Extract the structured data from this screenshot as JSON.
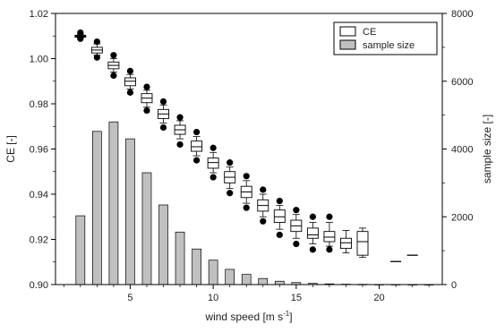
{
  "chart_data": {
    "type": "bar",
    "subtype": "boxplot-with-bars",
    "x_axis": {
      "label": "wind speed [m s",
      "label_sup": "-1",
      "label_end": "]",
      "ticks": [
        5,
        10,
        15,
        20
      ],
      "range": [
        0.5,
        23.8
      ]
    },
    "y_left": {
      "label": "CE [-]",
      "ticks": [
        "0.90",
        "0.92",
        "0.94",
        "0.96",
        "0.98",
        "1.00",
        "1.02"
      ],
      "range": [
        0.9,
        1.02
      ]
    },
    "y_right": {
      "label": "sample size [-]",
      "ticks": [
        "0",
        "2000",
        "4000",
        "6000",
        "8000"
      ],
      "range": [
        0,
        8000
      ]
    },
    "legend": {
      "position": "top-right",
      "items": [
        {
          "label": "CE",
          "swatch": "#ffffff"
        },
        {
          "label": "sample size",
          "swatch": "#c0c0c0"
        }
      ]
    },
    "sample_size": {
      "name": "sample size",
      "color": "#c0c0c0",
      "x": [
        2,
        3,
        4,
        5,
        6,
        7,
        8,
        9,
        10,
        11,
        12,
        13,
        14,
        15,
        16,
        17,
        18,
        19,
        20,
        21,
        22,
        23
      ],
      "values": [
        2030,
        4520,
        4800,
        4300,
        3300,
        2350,
        1550,
        1050,
        720,
        450,
        300,
        180,
        100,
        60,
        35,
        20,
        12,
        8,
        4,
        3,
        2,
        2
      ]
    },
    "ce_boxes": {
      "name": "CE",
      "color": "#ffffff",
      "boxes": [
        {
          "x": 2,
          "p5": 1.0088,
          "p10": 1.0092,
          "q1": 1.0095,
          "median": 1.0099,
          "q3": 1.0103,
          "p90": 1.0107,
          "p95": 1.0115
        },
        {
          "x": 3,
          "p5": 1.0005,
          "p10": 1.0015,
          "q1": 1.0025,
          "median": 1.0038,
          "q3": 1.005,
          "p90": 1.0065,
          "p95": 1.0075
        },
        {
          "x": 4,
          "p5": 0.9925,
          "p10": 0.994,
          "q1": 0.9955,
          "median": 0.997,
          "q3": 0.9985,
          "p90": 1.0,
          "p95": 1.0015
        },
        {
          "x": 5,
          "p5": 0.985,
          "p10": 0.9865,
          "q1": 0.988,
          "median": 0.99,
          "q3": 0.9915,
          "p90": 0.993,
          "p95": 0.9945
        },
        {
          "x": 6,
          "p5": 0.977,
          "p10": 0.9785,
          "q1": 0.9805,
          "median": 0.9825,
          "q3": 0.9845,
          "p90": 0.986,
          "p95": 0.9875
        },
        {
          "x": 7,
          "p5": 0.9695,
          "p10": 0.9715,
          "q1": 0.9735,
          "median": 0.9755,
          "q3": 0.9775,
          "p90": 0.9795,
          "p95": 0.981
        },
        {
          "x": 8,
          "p5": 0.962,
          "p10": 0.9645,
          "q1": 0.9665,
          "median": 0.9685,
          "q3": 0.9705,
          "p90": 0.9725,
          "p95": 0.974
        },
        {
          "x": 9,
          "p5": 0.955,
          "p10": 0.957,
          "q1": 0.959,
          "median": 0.961,
          "q3": 0.9635,
          "p90": 0.9655,
          "p95": 0.9675
        },
        {
          "x": 10,
          "p5": 0.9475,
          "p10": 0.9495,
          "q1": 0.9515,
          "median": 0.954,
          "q3": 0.956,
          "p90": 0.9585,
          "p95": 0.9605
        },
        {
          "x": 11,
          "p5": 0.9405,
          "p10": 0.9425,
          "q1": 0.945,
          "median": 0.9475,
          "q3": 0.95,
          "p90": 0.952,
          "p95": 0.954
        },
        {
          "x": 12,
          "p5": 0.934,
          "p10": 0.936,
          "q1": 0.9385,
          "median": 0.941,
          "q3": 0.9435,
          "p90": 0.946,
          "p95": 0.948
        },
        {
          "x": 13,
          "p5": 0.928,
          "p10": 0.93,
          "q1": 0.9325,
          "median": 0.935,
          "q3": 0.9375,
          "p90": 0.94,
          "p95": 0.942
        },
        {
          "x": 14,
          "p5": 0.922,
          "p10": 0.9245,
          "q1": 0.9275,
          "median": 0.93,
          "q3": 0.933,
          "p90": 0.935,
          "p95": 0.937
        },
        {
          "x": 15,
          "p5": 0.918,
          "p10": 0.9205,
          "q1": 0.9235,
          "median": 0.926,
          "q3": 0.9285,
          "p90": 0.931,
          "p95": 0.933
        },
        {
          "x": 16,
          "p5": 0.9155,
          "p10": 0.918,
          "q1": 0.9205,
          "median": 0.922,
          "q3": 0.925,
          "p90": 0.9275,
          "p95": 0.93
        },
        {
          "x": 17,
          "p5": 0.9155,
          "p10": 0.917,
          "q1": 0.919,
          "median": 0.921,
          "q3": 0.9235,
          "p90": 0.9275,
          "p95": 0.93
        },
        {
          "x": 18,
          "p5": null,
          "p10": 0.914,
          "q1": 0.916,
          "median": 0.9185,
          "q3": 0.9205,
          "p90": 0.924,
          "p95": null
        },
        {
          "x": 19,
          "p5": null,
          "p10": 0.912,
          "q1": 0.913,
          "median": 0.919,
          "q3": 0.9235,
          "p90": 0.925,
          "p95": null
        },
        {
          "x": 21,
          "p5": null,
          "p10": null,
          "q1": null,
          "median": 0.9102,
          "q3": null,
          "p90": null,
          "p95": null
        },
        {
          "x": 22,
          "p5": null,
          "p10": null,
          "q1": null,
          "median": 0.913,
          "q3": null,
          "p90": null,
          "p95": null
        }
      ]
    }
  }
}
